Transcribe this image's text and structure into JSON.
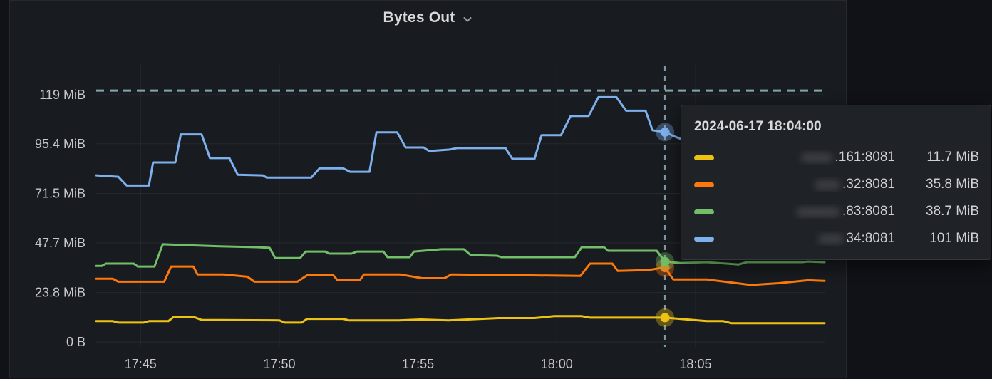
{
  "panel": {
    "title": "Bytes Out",
    "chevron_icon": "chevron-down"
  },
  "colors": {
    "background": "#111217",
    "panel_bg": "#181b1f",
    "grid": "rgba(204,204,220,0.08)",
    "axis_text": "#c8c9d0",
    "threshold": "#84a4b0",
    "crosshair": "#7e97a3",
    "yellow": "#edc213",
    "orange": "#ff780a",
    "green": "#73bf69",
    "blue": "#7eb0ee"
  },
  "chart_data": {
    "type": "line",
    "title": "Bytes Out",
    "unit": "MiB",
    "x_axis": {
      "unit": "minutes-after-17:40",
      "range": [
        3.4,
        29.65
      ],
      "ticks": [
        {
          "x": 5,
          "label": "17:45"
        },
        {
          "x": 10,
          "label": "17:50"
        },
        {
          "x": 15,
          "label": "17:55"
        },
        {
          "x": 20,
          "label": "18:00"
        },
        {
          "x": 25,
          "label": "18:05"
        }
      ]
    },
    "y_axis": {
      "range": [
        0,
        134.4
      ],
      "ticks": [
        {
          "y": 0,
          "label": "0 B"
        },
        {
          "y": 23.8,
          "label": "23.8 MiB"
        },
        {
          "y": 47.7,
          "label": "47.7 MiB"
        },
        {
          "y": 71.5,
          "label": "71.5 MiB"
        },
        {
          "y": 95.4,
          "label": "95.4 MiB"
        },
        {
          "y": 119,
          "label": "119 MiB"
        }
      ]
    },
    "threshold": {
      "value": 121,
      "style": "dashed",
      "color_key": "threshold"
    },
    "crosshair": {
      "x": 23.9,
      "time": "18:04:00",
      "color_key": "crosshair"
    },
    "series": [
      {
        "name": ".161:8081",
        "color_key": "yellow",
        "value_at_cursor": 11.7,
        "points": [
          [
            3.4,
            10
          ],
          [
            4,
            10
          ],
          [
            4.2,
            9.3
          ],
          [
            5.1,
            9.3
          ],
          [
            5.3,
            10
          ],
          [
            6,
            10
          ],
          [
            6.2,
            12.1
          ],
          [
            6.9,
            12.1
          ],
          [
            7.2,
            10.6
          ],
          [
            10,
            10.4
          ],
          [
            10.2,
            9.3
          ],
          [
            10.8,
            9.3
          ],
          [
            11,
            11.1
          ],
          [
            12.3,
            11.1
          ],
          [
            12.5,
            10.4
          ],
          [
            14.3,
            10.4
          ],
          [
            15.1,
            10.8
          ],
          [
            16.1,
            10.4
          ],
          [
            17.9,
            11.5
          ],
          [
            19.2,
            11.5
          ],
          [
            19.9,
            12.4
          ],
          [
            20.9,
            12.4
          ],
          [
            21.2,
            11.7
          ],
          [
            23.9,
            11.7
          ],
          [
            25.4,
            10
          ],
          [
            26,
            10
          ],
          [
            26.3,
            9
          ],
          [
            29.65,
            9
          ]
        ]
      },
      {
        "name": ".32:8081",
        "color_key": "orange",
        "value_at_cursor": 35.8,
        "points": [
          [
            3.4,
            30.4
          ],
          [
            4,
            30.4
          ],
          [
            4.2,
            29
          ],
          [
            5.85,
            29
          ],
          [
            6.1,
            36.3
          ],
          [
            6.9,
            36.3
          ],
          [
            7.05,
            32.5
          ],
          [
            8,
            32.5
          ],
          [
            8.85,
            31.4
          ],
          [
            9.1,
            29
          ],
          [
            10.65,
            29
          ],
          [
            11,
            32.1
          ],
          [
            11.95,
            32.1
          ],
          [
            12.1,
            29.7
          ],
          [
            12.9,
            29.7
          ],
          [
            13.05,
            32.5
          ],
          [
            14.35,
            32.5
          ],
          [
            15.15,
            30.7
          ],
          [
            15.95,
            30.7
          ],
          [
            16.2,
            32.5
          ],
          [
            18.9,
            32.1
          ],
          [
            20.85,
            31.8
          ],
          [
            21.2,
            37.7
          ],
          [
            22,
            37.7
          ],
          [
            22.2,
            34.2
          ],
          [
            23.3,
            34.6
          ],
          [
            23.75,
            35.6
          ],
          [
            23.9,
            35.8
          ],
          [
            24.2,
            30.1
          ],
          [
            25.4,
            30.1
          ],
          [
            26.9,
            27.6
          ],
          [
            27.2,
            27.6
          ],
          [
            28,
            28.3
          ],
          [
            29.05,
            29.7
          ],
          [
            29.65,
            29.4
          ]
        ]
      },
      {
        "name": ".83:8081",
        "color_key": "green",
        "value_at_cursor": 38.7,
        "points": [
          [
            3.4,
            36.6
          ],
          [
            3.6,
            36.6
          ],
          [
            3.75,
            37.7
          ],
          [
            4.75,
            37.7
          ],
          [
            4.9,
            36.3
          ],
          [
            5.5,
            36.3
          ],
          [
            5.8,
            47
          ],
          [
            7.85,
            46
          ],
          [
            9.2,
            45.6
          ],
          [
            9.65,
            45.3
          ],
          [
            9.85,
            40.4
          ],
          [
            10.75,
            40.4
          ],
          [
            10.95,
            43.5
          ],
          [
            11.65,
            43.5
          ],
          [
            11.8,
            42.5
          ],
          [
            12.6,
            42.5
          ],
          [
            12.8,
            43.5
          ],
          [
            13.75,
            43.5
          ],
          [
            13.9,
            40.8
          ],
          [
            14.7,
            40.8
          ],
          [
            14.85,
            43.5
          ],
          [
            15.85,
            44.6
          ],
          [
            16.65,
            44.6
          ],
          [
            16.9,
            41.8
          ],
          [
            17.85,
            41.5
          ],
          [
            18,
            40.8
          ],
          [
            20.65,
            40.8
          ],
          [
            20.9,
            45.6
          ],
          [
            21.7,
            45.6
          ],
          [
            21.85,
            43.9
          ],
          [
            23.6,
            43.9
          ],
          [
            23.9,
            38.7
          ],
          [
            24.45,
            38
          ],
          [
            25.4,
            38.4
          ],
          [
            26.55,
            37.3
          ],
          [
            26.85,
            38.4
          ],
          [
            28.85,
            38.4
          ],
          [
            29.05,
            38.7
          ],
          [
            29.65,
            38.4
          ]
        ]
      },
      {
        "name": "34:8081",
        "color_key": "blue",
        "value_at_cursor": 101,
        "points": [
          [
            3.4,
            80.2
          ],
          [
            4.2,
            79.5
          ],
          [
            4.5,
            75.3
          ],
          [
            5.3,
            75.3
          ],
          [
            5.45,
            86.4
          ],
          [
            6.25,
            86.4
          ],
          [
            6.45,
            99.9
          ],
          [
            7.2,
            99.9
          ],
          [
            7.5,
            88.5
          ],
          [
            8.2,
            88.5
          ],
          [
            8.5,
            80.5
          ],
          [
            9.4,
            80.2
          ],
          [
            9.55,
            79.1
          ],
          [
            11.15,
            79.1
          ],
          [
            11.45,
            83.6
          ],
          [
            12.3,
            83.6
          ],
          [
            12.55,
            81.9
          ],
          [
            13.25,
            81.9
          ],
          [
            13.5,
            100.9
          ],
          [
            14.25,
            100.9
          ],
          [
            14.55,
            93.6
          ],
          [
            15.2,
            93.6
          ],
          [
            15.4,
            91.9
          ],
          [
            16.15,
            92.6
          ],
          [
            16.4,
            93.3
          ],
          [
            18.15,
            93.3
          ],
          [
            18.4,
            88.1
          ],
          [
            19.2,
            88.1
          ],
          [
            19.45,
            99.5
          ],
          [
            20.15,
            99.5
          ],
          [
            20.5,
            108.8
          ],
          [
            21.15,
            108.8
          ],
          [
            21.5,
            117.8
          ],
          [
            22.15,
            117.8
          ],
          [
            22.5,
            111.3
          ],
          [
            23.2,
            111.3
          ],
          [
            23.45,
            101.9
          ],
          [
            23.9,
            101
          ],
          [
            24.2,
            99.2
          ],
          [
            24.45,
            97.8
          ]
        ]
      }
    ]
  },
  "tooltip": {
    "timestamp": "2024-06-17 18:04:00",
    "rows": [
      {
        "label": ".161:8081",
        "value": "11.7 MiB",
        "color_key": "yellow",
        "blur_width": 44
      },
      {
        "label": ".32:8081",
        "value": "35.8 MiB",
        "color_key": "orange",
        "blur_width": 36
      },
      {
        "label": ".83:8081",
        "value": "38.7 MiB",
        "color_key": "green",
        "blur_width": 62
      },
      {
        "label": "34:8081",
        "value": "101 MiB",
        "color_key": "blue",
        "blur_width": 36
      }
    ]
  }
}
